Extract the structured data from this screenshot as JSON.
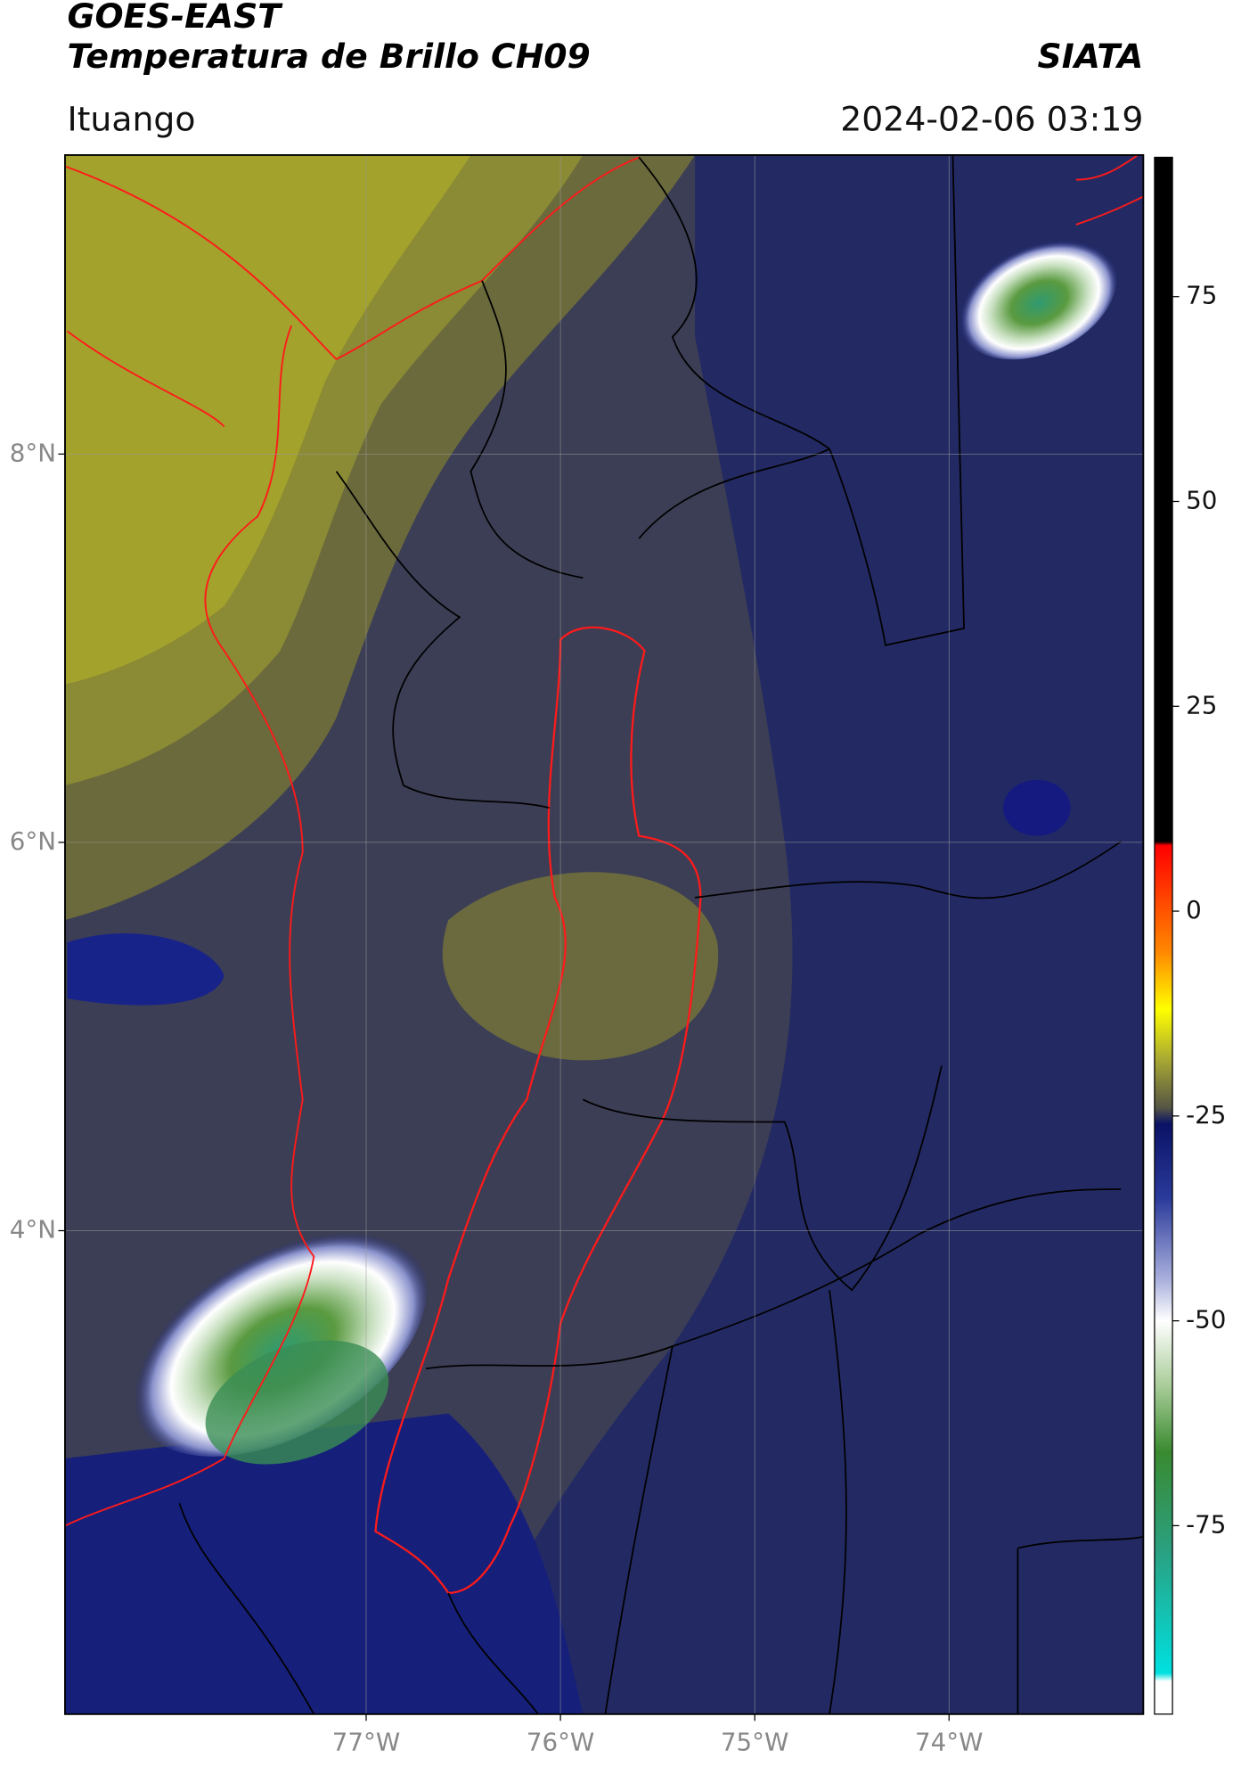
{
  "header": {
    "title_line1": "GOES-EAST",
    "title_line2": "Temperatura de Brillo CH09",
    "agency": "SIATA",
    "location": "Ituango",
    "datetime": "2024-02-06 03:19"
  },
  "map": {
    "type": "map",
    "xlim": [
      -78.55,
      -73.0
    ],
    "ylim": [
      1.51,
      9.54
    ],
    "xticks": [
      {
        "value": -77,
        "label": "77°W"
      },
      {
        "value": -76,
        "label": "76°W"
      },
      {
        "value": -75,
        "label": "75°W"
      },
      {
        "value": -74,
        "label": "74°W"
      }
    ],
    "yticks": [
      {
        "value": 4,
        "label": "4°N"
      },
      {
        "value": 6,
        "label": "6°N"
      },
      {
        "value": 8,
        "label": "8°N"
      }
    ],
    "grid": true
  },
  "colorbar": {
    "lim": [
      -98,
      92
    ],
    "ticks": [
      75,
      50,
      25,
      0,
      -25,
      -50,
      -75
    ],
    "stops": [
      [
        92,
        "#000000"
      ],
      [
        8.5,
        "#000000"
      ],
      [
        8,
        "#ff0000"
      ],
      [
        -5,
        "#ff8800"
      ],
      [
        -12,
        "#ffff00"
      ],
      [
        -18,
        "#aaaa33"
      ],
      [
        -24,
        "#555544"
      ],
      [
        -26,
        "#0a1266"
      ],
      [
        -35,
        "#2a3a9a"
      ],
      [
        -45,
        "#aab0dd"
      ],
      [
        -50,
        "#ffffff"
      ],
      [
        -58,
        "#a8cc98"
      ],
      [
        -66,
        "#3a8a30"
      ],
      [
        -78,
        "#2aa080"
      ],
      [
        -93,
        "#00e0e0"
      ],
      [
        -94,
        "#ffffff"
      ],
      [
        -98,
        "#ffffff"
      ]
    ]
  }
}
